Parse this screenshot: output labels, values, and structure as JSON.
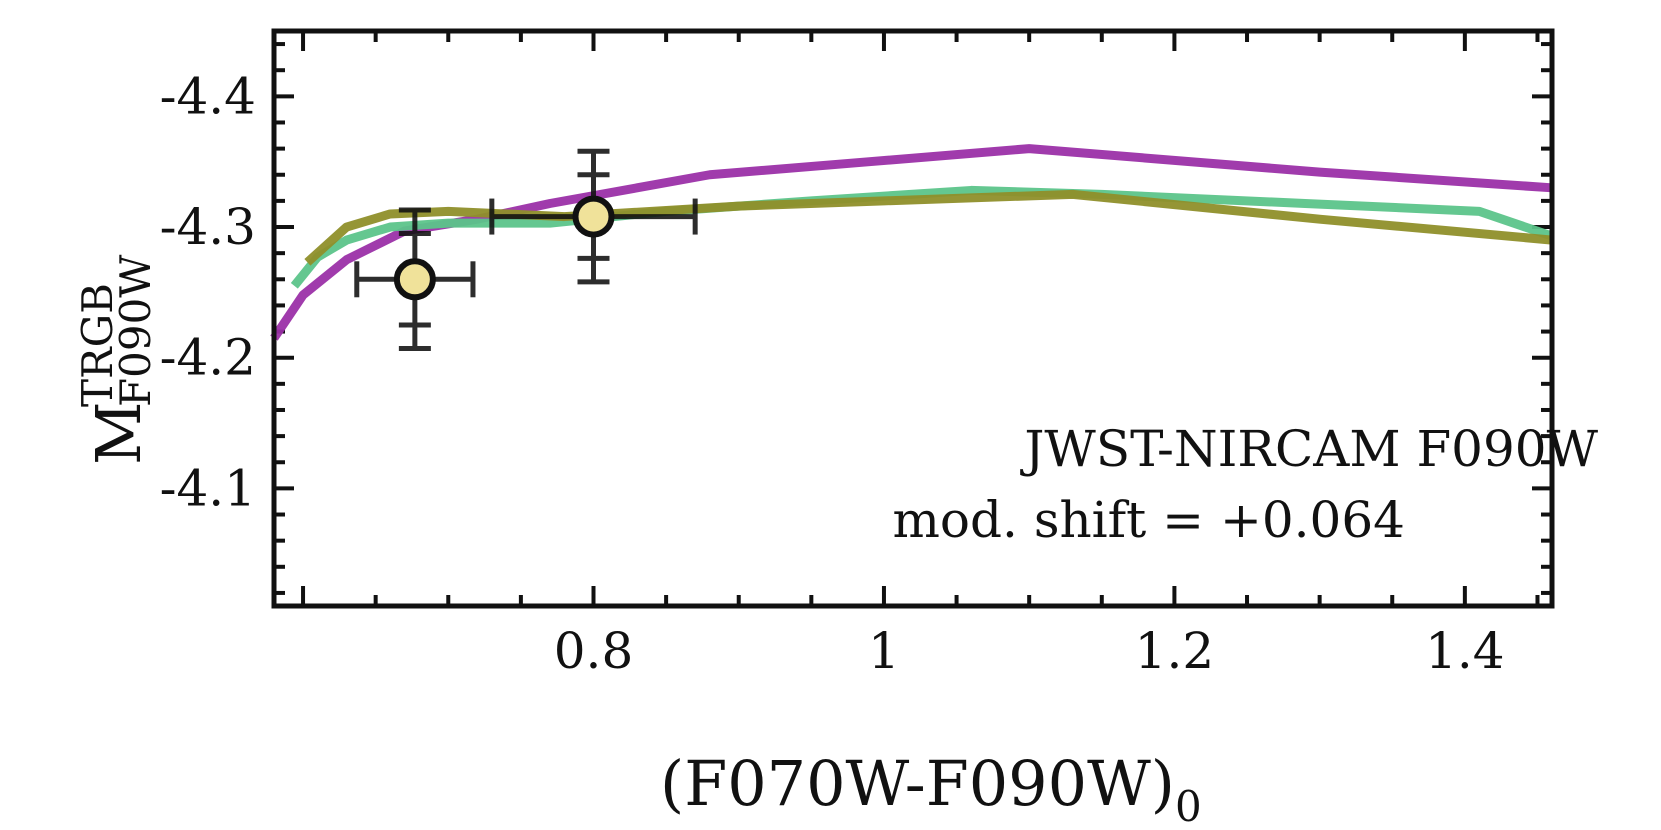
{
  "chart_data": {
    "type": "line",
    "title": "",
    "xlabel": {
      "main": "(F070W-F090W)",
      "sub": "0"
    },
    "ylabel": {
      "main": "M",
      "sup": "TRGB",
      "sub": "F090W"
    },
    "xlim": [
      0.58,
      1.46
    ],
    "ylim": [
      -4.45,
      -4.01
    ],
    "y_inverted": true,
    "x_ticks": [
      0.8,
      1.0,
      1.2,
      1.4
    ],
    "x_tick_labels": [
      "0.8",
      "1",
      "1.2",
      "1.4"
    ],
    "y_ticks": [
      -4.4,
      -4.3,
      -4.2,
      -4.1
    ],
    "y_tick_labels": [
      "-4.4",
      "-4.3",
      "-4.2",
      "-4.1"
    ],
    "annotation": {
      "line1": "JWST-NIRCAM F090W",
      "line2": "mod. shift = +0.064"
    },
    "series": [
      {
        "name": "purple model",
        "color": "#9b30a8",
        "x": [
          0.58,
          0.6,
          0.63,
          0.67,
          0.72,
          0.77,
          0.83,
          0.88,
          0.99,
          1.1,
          1.3,
          1.46
        ],
        "y": [
          -4.215,
          -4.248,
          -4.275,
          -4.297,
          -4.306,
          -4.318,
          -4.33,
          -4.34,
          -4.35,
          -4.36,
          -4.342,
          -4.33
        ]
      },
      {
        "name": "green model",
        "color": "#5cc48a",
        "x": [
          0.594,
          0.61,
          0.63,
          0.66,
          0.7,
          0.77,
          0.85,
          0.95,
          1.06,
          1.15,
          1.29,
          1.41,
          1.46
        ],
        "y": [
          -4.255,
          -4.277,
          -4.29,
          -4.3,
          -4.303,
          -4.303,
          -4.312,
          -4.32,
          -4.328,
          -4.325,
          -4.318,
          -4.312,
          -4.293
        ]
      },
      {
        "name": "olive model",
        "color": "#8f8f2a",
        "x": [
          0.603,
          0.63,
          0.66,
          0.7,
          0.78,
          0.9,
          1.0,
          1.13,
          1.3,
          1.46
        ],
        "y": [
          -4.273,
          -4.3,
          -4.31,
          -4.312,
          -4.308,
          -4.316,
          -4.32,
          -4.325,
          -4.306,
          -4.29
        ]
      }
    ],
    "points": [
      {
        "x": 0.677,
        "y": -4.26,
        "xerr": 0.04,
        "yerr_inner": 0.035,
        "yerr_outer": 0.053,
        "color": "#f0e29a"
      },
      {
        "x": 0.8,
        "y": -4.308,
        "xerr": 0.07,
        "yerr_inner": 0.032,
        "yerr_outer": 0.05,
        "color": "#f0e29a"
      }
    ]
  }
}
